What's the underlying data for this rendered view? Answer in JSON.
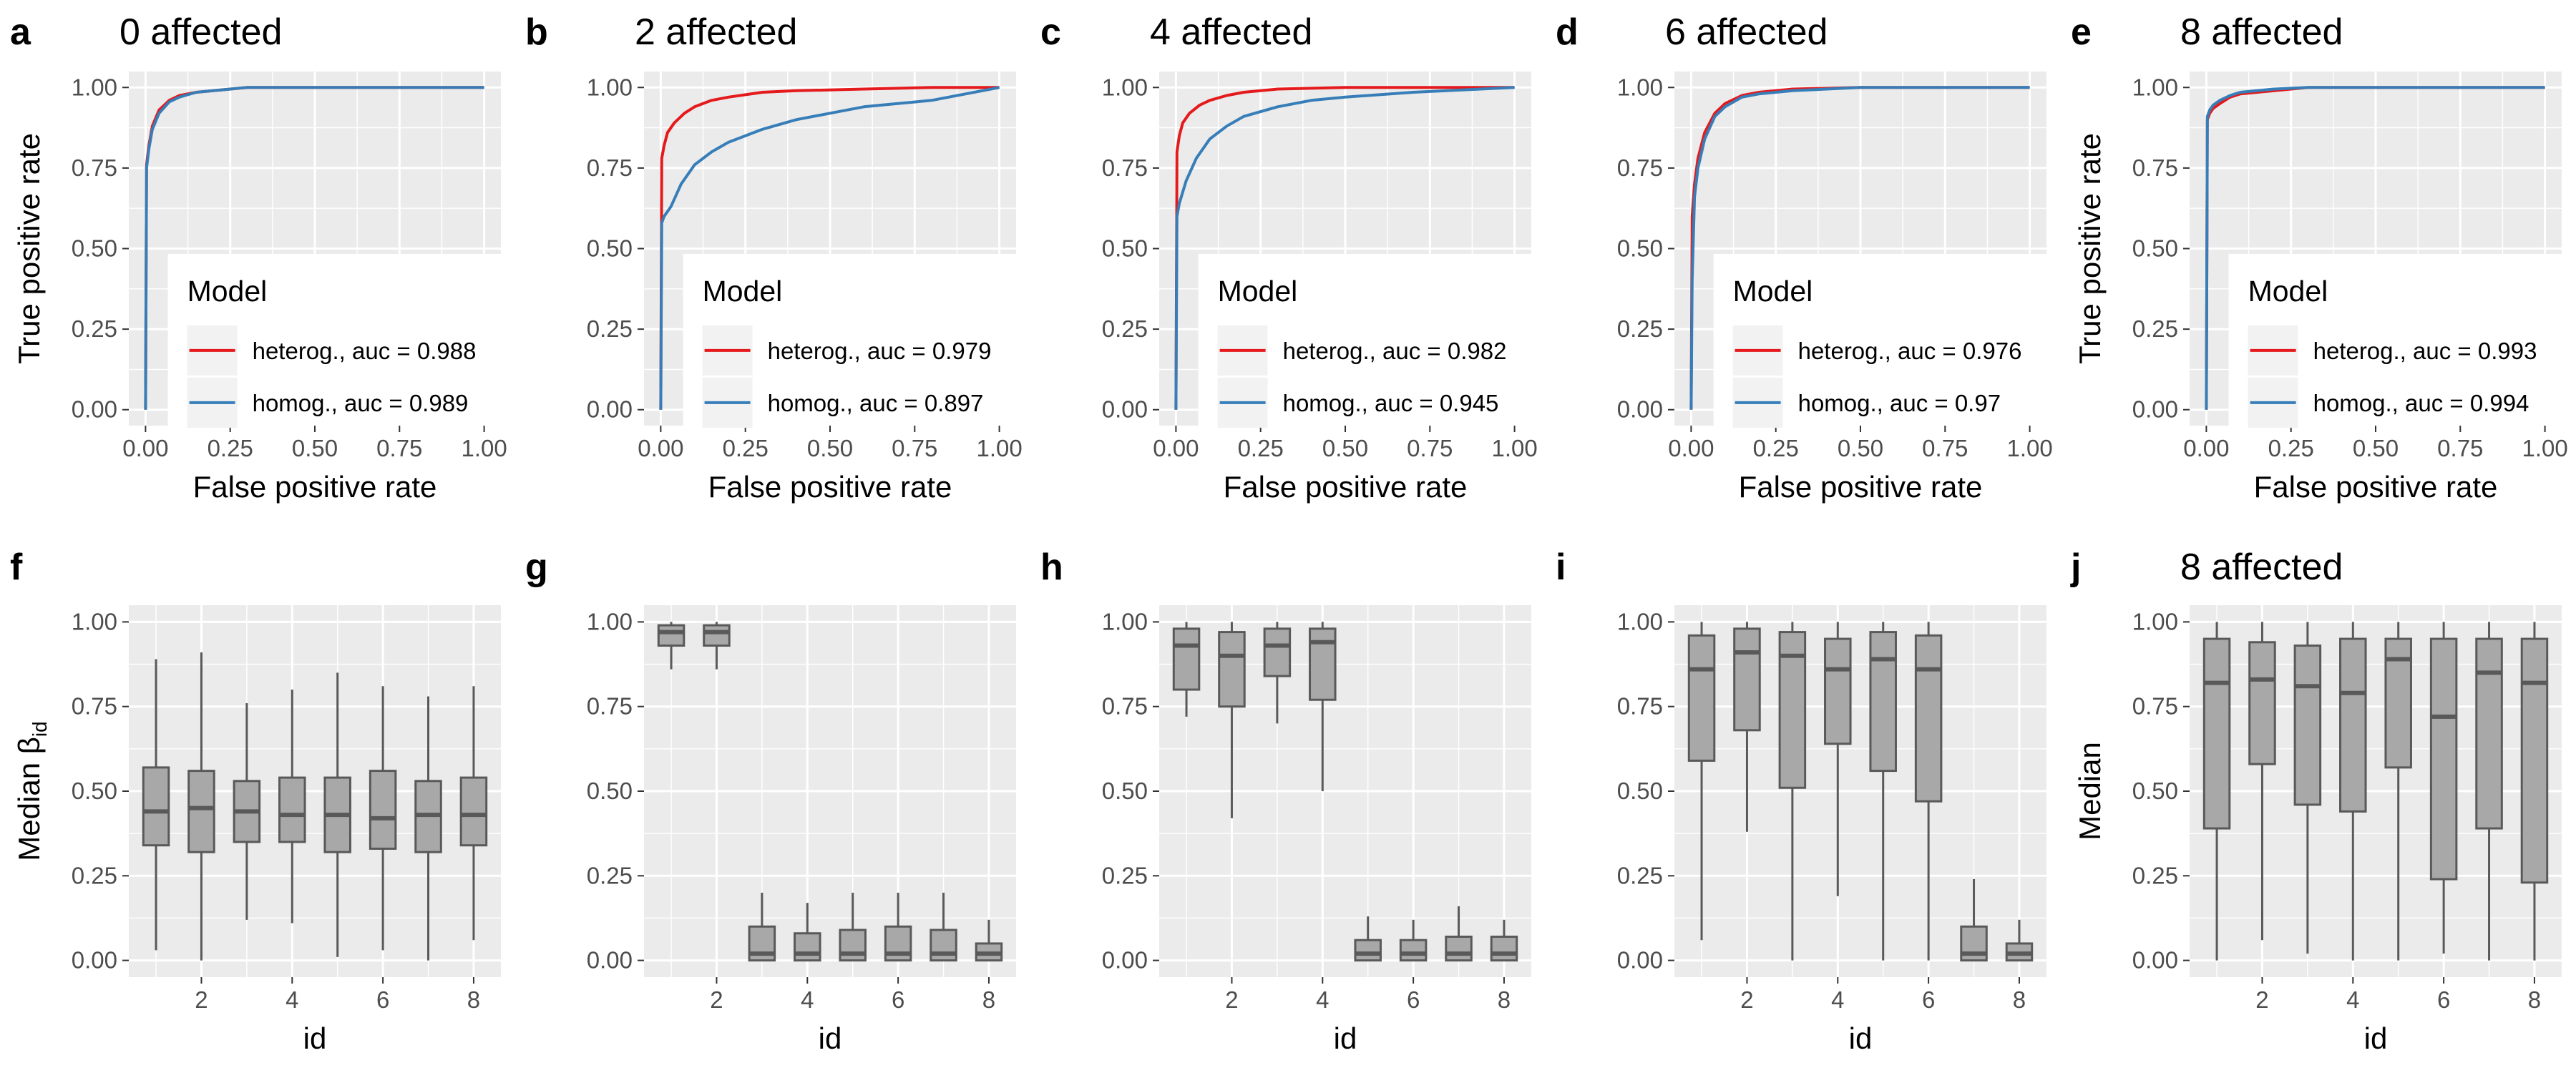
{
  "roc_axes": {
    "xlabel": "False positive rate",
    "ylabel": "True positive rate",
    "ticks": [
      0,
      0.25,
      0.5,
      0.75,
      1
    ],
    "tick_labels": [
      "0.00",
      "0.25",
      "0.50",
      "0.75",
      "1.00"
    ]
  },
  "box_axes": {
    "xlabel": "id",
    "x_ticks": [
      2,
      4,
      6,
      8
    ],
    "x_tick_labels": [
      "2",
      "4",
      "6",
      "8"
    ],
    "y_ticks": [
      0,
      0.25,
      0.5,
      0.75,
      1
    ],
    "y_tick_labels": [
      "0.00",
      "0.25",
      "0.50",
      "0.75",
      "1.00"
    ]
  },
  "legend": {
    "title": "Model",
    "series_colors": {
      "heterog": "#e41a1c",
      "homog": "#377eb8"
    }
  },
  "colors": {
    "panel_background": "#ebebeb",
    "grid": "#ffffff",
    "box_fill": "#a8a8a8",
    "box_line": "#595959"
  },
  "chart_data": [
    {
      "type": "line",
      "panel": "a",
      "title": "0 affected",
      "xlabel": "False positive rate",
      "ylabel": "True positive rate",
      "xlim": [
        0,
        1
      ],
      "ylim": [
        0,
        1
      ],
      "grid": true,
      "legend_placement": "bottom-right",
      "series": [
        {
          "name": "heterog., auc = 0.988",
          "color": "#e41a1c",
          "x": [
            0,
            0.003,
            0.01,
            0.02,
            0.04,
            0.07,
            0.1,
            0.15,
            0.2,
            0.3,
            1
          ],
          "y": [
            0,
            0.76,
            0.82,
            0.88,
            0.93,
            0.96,
            0.975,
            0.985,
            0.99,
            1,
            1
          ]
        },
        {
          "name": "homog., auc = 0.989",
          "color": "#377eb8",
          "x": [
            0,
            0.003,
            0.01,
            0.02,
            0.04,
            0.07,
            0.1,
            0.15,
            0.2,
            0.3,
            1
          ],
          "y": [
            0,
            0.75,
            0.81,
            0.87,
            0.92,
            0.955,
            0.97,
            0.985,
            0.99,
            1,
            1
          ]
        }
      ]
    },
    {
      "type": "line",
      "panel": "b",
      "title": "2 affected",
      "xlabel": "False positive rate",
      "ylabel": "",
      "xlim": [
        0,
        1
      ],
      "ylim": [
        0,
        1
      ],
      "grid": true,
      "legend_placement": "bottom-right",
      "series": [
        {
          "name": "heterog., auc = 0.979",
          "color": "#e41a1c",
          "x": [
            0,
            0.003,
            0.01,
            0.02,
            0.04,
            0.07,
            0.1,
            0.15,
            0.2,
            0.3,
            0.4,
            0.6,
            0.8,
            1
          ],
          "y": [
            0,
            0.78,
            0.82,
            0.86,
            0.89,
            0.92,
            0.94,
            0.96,
            0.97,
            0.985,
            0.99,
            0.995,
            1,
            1
          ]
        },
        {
          "name": "homog., auc = 0.897",
          "color": "#377eb8",
          "x": [
            0,
            0.003,
            0.01,
            0.03,
            0.06,
            0.1,
            0.15,
            0.2,
            0.3,
            0.4,
            0.5,
            0.6,
            0.7,
            0.8,
            0.9,
            1
          ],
          "y": [
            0,
            0.58,
            0.6,
            0.63,
            0.7,
            0.76,
            0.8,
            0.83,
            0.87,
            0.9,
            0.92,
            0.94,
            0.95,
            0.96,
            0.98,
            1
          ]
        }
      ]
    },
    {
      "type": "line",
      "panel": "c",
      "title": "4 affected",
      "xlabel": "False positive rate",
      "ylabel": "",
      "xlim": [
        0,
        1
      ],
      "ylim": [
        0,
        1
      ],
      "grid": true,
      "legend_placement": "bottom-right",
      "series": [
        {
          "name": "heterog., auc = 0.982",
          "color": "#e41a1c",
          "x": [
            0,
            0.003,
            0.01,
            0.02,
            0.04,
            0.07,
            0.1,
            0.15,
            0.2,
            0.3,
            0.5,
            1
          ],
          "y": [
            0,
            0.8,
            0.85,
            0.89,
            0.92,
            0.945,
            0.96,
            0.975,
            0.985,
            0.995,
            1,
            1
          ]
        },
        {
          "name": "homog., auc = 0.945",
          "color": "#377eb8",
          "x": [
            0,
            0.003,
            0.01,
            0.03,
            0.06,
            0.1,
            0.15,
            0.2,
            0.3,
            0.4,
            0.5,
            0.7,
            0.9,
            1
          ],
          "y": [
            0,
            0.6,
            0.64,
            0.71,
            0.78,
            0.84,
            0.88,
            0.91,
            0.94,
            0.96,
            0.97,
            0.985,
            0.995,
            1
          ]
        }
      ]
    },
    {
      "type": "line",
      "panel": "d",
      "title": "6 affected",
      "xlabel": "False positive rate",
      "ylabel": "",
      "xlim": [
        0,
        1
      ],
      "ylim": [
        0,
        1
      ],
      "grid": true,
      "legend_placement": "bottom-right",
      "series": [
        {
          "name": "heterog., auc = 0.976",
          "color": "#e41a1c",
          "x": [
            0,
            0.003,
            0.01,
            0.02,
            0.04,
            0.07,
            0.1,
            0.15,
            0.2,
            0.3,
            0.5,
            1
          ],
          "y": [
            0,
            0.6,
            0.7,
            0.78,
            0.86,
            0.92,
            0.95,
            0.975,
            0.985,
            0.995,
            1,
            1
          ]
        },
        {
          "name": "homog., auc = 0.97",
          "color": "#377eb8",
          "x": [
            0,
            0.003,
            0.01,
            0.02,
            0.04,
            0.07,
            0.1,
            0.15,
            0.2,
            0.3,
            0.5,
            1
          ],
          "y": [
            0,
            0.4,
            0.66,
            0.75,
            0.84,
            0.91,
            0.94,
            0.97,
            0.98,
            0.99,
            1,
            1
          ]
        }
      ]
    },
    {
      "type": "line",
      "panel": "e",
      "title": "8 affected",
      "xlabel": "False positive rate",
      "ylabel": "True positive rate",
      "xlim": [
        0,
        1
      ],
      "ylim": [
        0,
        1
      ],
      "grid": true,
      "legend_placement": "bottom-right",
      "series": [
        {
          "name": "heterog., auc = 0.993",
          "color": "#e41a1c",
          "x": [
            0,
            0.003,
            0.01,
            0.02,
            0.04,
            0.07,
            0.1,
            0.2,
            0.3,
            1
          ],
          "y": [
            0,
            0.9,
            0.92,
            0.935,
            0.95,
            0.97,
            0.98,
            0.99,
            1,
            1
          ]
        },
        {
          "name": "homog., auc = 0.994",
          "color": "#377eb8",
          "x": [
            0,
            0.003,
            0.01,
            0.02,
            0.04,
            0.07,
            0.1,
            0.2,
            0.3,
            1
          ],
          "y": [
            0,
            0.91,
            0.93,
            0.945,
            0.96,
            0.975,
            0.985,
            0.995,
            1,
            1
          ]
        }
      ]
    },
    {
      "type": "box",
      "panel": "f",
      "title": "",
      "xlabel": "id",
      "ylabel": "Median β",
      "ylabel_sub": "id",
      "ylim": [
        0,
        1
      ],
      "categories": [
        1,
        2,
        3,
        4,
        5,
        6,
        7,
        8
      ],
      "boxes": [
        {
          "min": 0.03,
          "q1": 0.34,
          "median": 0.44,
          "q3": 0.57,
          "max": 0.89
        },
        {
          "min": 0.0,
          "q1": 0.32,
          "median": 0.45,
          "q3": 0.56,
          "max": 0.91
        },
        {
          "min": 0.12,
          "q1": 0.35,
          "median": 0.44,
          "q3": 0.53,
          "max": 0.76
        },
        {
          "min": 0.11,
          "q1": 0.35,
          "median": 0.43,
          "q3": 0.54,
          "max": 0.8
        },
        {
          "min": 0.01,
          "q1": 0.32,
          "median": 0.43,
          "q3": 0.54,
          "max": 0.85
        },
        {
          "min": 0.03,
          "q1": 0.33,
          "median": 0.42,
          "q3": 0.56,
          "max": 0.81
        },
        {
          "min": 0.0,
          "q1": 0.32,
          "median": 0.43,
          "q3": 0.53,
          "max": 0.78
        },
        {
          "min": 0.06,
          "q1": 0.34,
          "median": 0.43,
          "q3": 0.54,
          "max": 0.81
        }
      ]
    },
    {
      "type": "box",
      "panel": "g",
      "title": "",
      "xlabel": "id",
      "ylabel": "",
      "ylim": [
        0,
        1
      ],
      "categories": [
        1,
        2,
        3,
        4,
        5,
        6,
        7,
        8
      ],
      "boxes": [
        {
          "min": 0.86,
          "q1": 0.93,
          "median": 0.97,
          "q3": 0.99,
          "max": 1.0
        },
        {
          "min": 0.86,
          "q1": 0.93,
          "median": 0.97,
          "q3": 0.99,
          "max": 1.0
        },
        {
          "min": 0.0,
          "q1": 0.0,
          "median": 0.02,
          "q3": 0.1,
          "max": 0.2
        },
        {
          "min": 0.0,
          "q1": 0.0,
          "median": 0.02,
          "q3": 0.08,
          "max": 0.17
        },
        {
          "min": 0.0,
          "q1": 0.0,
          "median": 0.02,
          "q3": 0.09,
          "max": 0.2
        },
        {
          "min": 0.0,
          "q1": 0.0,
          "median": 0.02,
          "q3": 0.1,
          "max": 0.2
        },
        {
          "min": 0.0,
          "q1": 0.0,
          "median": 0.02,
          "q3": 0.09,
          "max": 0.2
        },
        {
          "min": 0.0,
          "q1": 0.0,
          "median": 0.02,
          "q3": 0.05,
          "max": 0.12
        }
      ]
    },
    {
      "type": "box",
      "panel": "h",
      "title": "",
      "xlabel": "id",
      "ylabel": "",
      "ylim": [
        0,
        1
      ],
      "categories": [
        1,
        2,
        3,
        4,
        5,
        6,
        7,
        8
      ],
      "boxes": [
        {
          "min": 0.72,
          "q1": 0.8,
          "median": 0.93,
          "q3": 0.98,
          "max": 1.0
        },
        {
          "min": 0.42,
          "q1": 0.75,
          "median": 0.9,
          "q3": 0.97,
          "max": 1.0
        },
        {
          "min": 0.7,
          "q1": 0.84,
          "median": 0.93,
          "q3": 0.98,
          "max": 1.0
        },
        {
          "min": 0.5,
          "q1": 0.77,
          "median": 0.94,
          "q3": 0.98,
          "max": 1.0
        },
        {
          "min": 0.0,
          "q1": 0.0,
          "median": 0.02,
          "q3": 0.06,
          "max": 0.13
        },
        {
          "min": 0.0,
          "q1": 0.0,
          "median": 0.02,
          "q3": 0.06,
          "max": 0.12
        },
        {
          "min": 0.0,
          "q1": 0.0,
          "median": 0.02,
          "q3": 0.07,
          "max": 0.16
        },
        {
          "min": 0.0,
          "q1": 0.0,
          "median": 0.02,
          "q3": 0.07,
          "max": 0.12
        }
      ]
    },
    {
      "type": "box",
      "panel": "i",
      "title": "",
      "xlabel": "id",
      "ylabel": "",
      "ylim": [
        0,
        1
      ],
      "categories": [
        1,
        2,
        3,
        4,
        5,
        6,
        7,
        8
      ],
      "boxes": [
        {
          "min": 0.06,
          "q1": 0.59,
          "median": 0.86,
          "q3": 0.96,
          "max": 1.0
        },
        {
          "min": 0.38,
          "q1": 0.68,
          "median": 0.91,
          "q3": 0.98,
          "max": 1.0
        },
        {
          "min": 0.0,
          "q1": 0.51,
          "median": 0.9,
          "q3": 0.97,
          "max": 1.0
        },
        {
          "min": 0.19,
          "q1": 0.64,
          "median": 0.86,
          "q3": 0.95,
          "max": 1.0
        },
        {
          "min": 0.0,
          "q1": 0.56,
          "median": 0.89,
          "q3": 0.97,
          "max": 1.0
        },
        {
          "min": 0.0,
          "q1": 0.47,
          "median": 0.86,
          "q3": 0.96,
          "max": 1.0
        },
        {
          "min": 0.0,
          "q1": 0.0,
          "median": 0.02,
          "q3": 0.1,
          "max": 0.24
        },
        {
          "min": 0.0,
          "q1": 0.0,
          "median": 0.02,
          "q3": 0.05,
          "max": 0.12
        }
      ]
    },
    {
      "type": "box",
      "panel": "j",
      "title": "8 affected",
      "xlabel": "id",
      "ylabel": "Median",
      "ylim": [
        0,
        1
      ],
      "categories": [
        1,
        2,
        3,
        4,
        5,
        6,
        7,
        8
      ],
      "boxes": [
        {
          "min": 0.0,
          "q1": 0.39,
          "median": 0.82,
          "q3": 0.95,
          "max": 1.0
        },
        {
          "min": 0.06,
          "q1": 0.58,
          "median": 0.83,
          "q3": 0.94,
          "max": 1.0
        },
        {
          "min": 0.02,
          "q1": 0.46,
          "median": 0.81,
          "q3": 0.93,
          "max": 1.0
        },
        {
          "min": 0.0,
          "q1": 0.44,
          "median": 0.79,
          "q3": 0.95,
          "max": 1.0
        },
        {
          "min": 0.0,
          "q1": 0.57,
          "median": 0.89,
          "q3": 0.95,
          "max": 1.0
        },
        {
          "min": 0.02,
          "q1": 0.24,
          "median": 0.72,
          "q3": 0.95,
          "max": 1.0
        },
        {
          "min": 0.0,
          "q1": 0.39,
          "median": 0.85,
          "q3": 0.95,
          "max": 1.0
        },
        {
          "min": 0.0,
          "q1": 0.23,
          "median": 0.82,
          "q3": 0.95,
          "max": 1.0
        }
      ]
    }
  ]
}
